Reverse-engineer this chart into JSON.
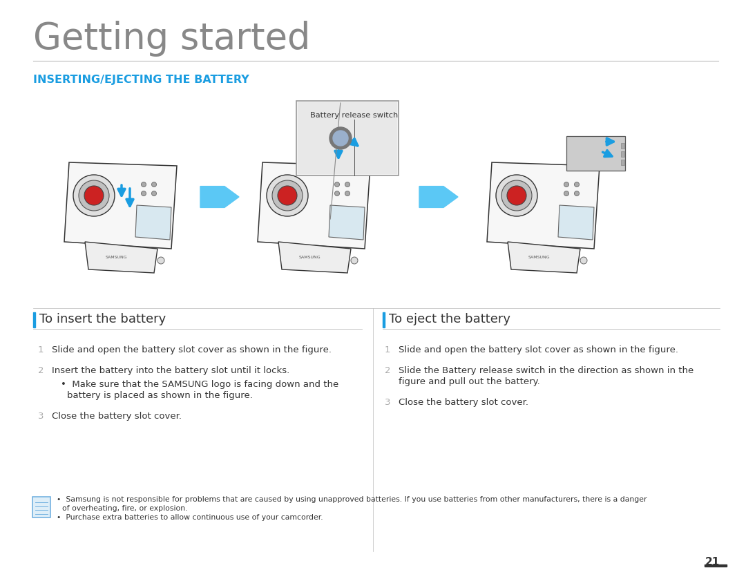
{
  "bg_color": "#ffffff",
  "title": "Getting started",
  "title_font_size": 38,
  "title_color": "#888888",
  "section_title": "INSERTING/EJECTING THE BATTERY",
  "section_title_color": "#1a9de1",
  "section_title_font_size": 11.5,
  "separator_color": "#bbbbbb",
  "left_header": "To insert the battery",
  "right_header": "To eject the battery",
  "header_font_size": 13,
  "header_color": "#333333",
  "header_bar_color": "#1a9de1",
  "body_font_size": 9.5,
  "body_color": "#333333",
  "number_color": "#aaaaaa",
  "note_font_size": 7.8,
  "page_number": "21",
  "callout_text": "Battery release switch",
  "arrow_color": "#5bc8f5",
  "blue_arrow_color": "#1a9de1",
  "cam_line_color": "#333333",
  "cam_fill_color": "#f7f7f7",
  "battery_fill": "#cccccc",
  "battery_edge": "#555555"
}
